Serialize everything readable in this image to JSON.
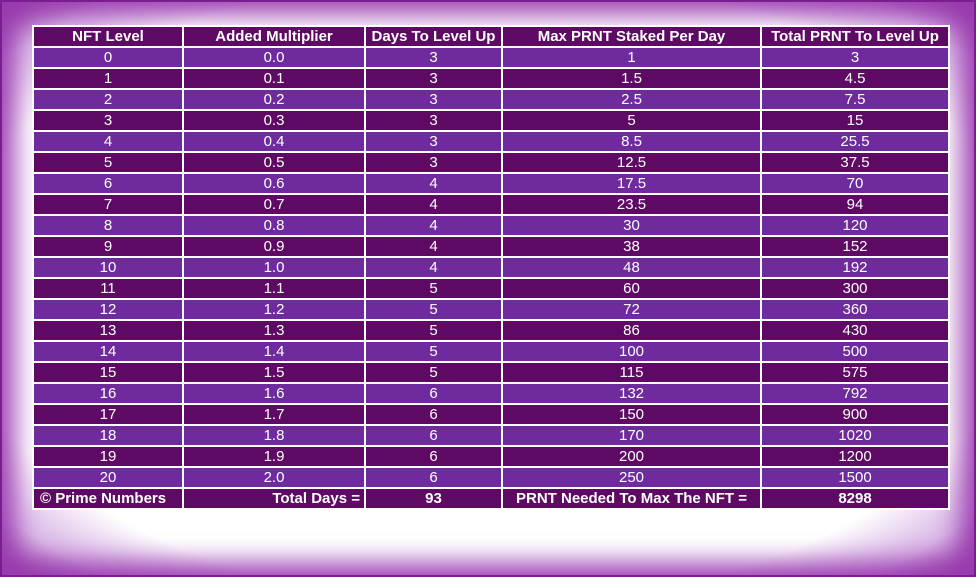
{
  "table": {
    "headers": [
      "NFT Level",
      "Added Multiplier",
      "Days To Level Up",
      "Max PRNT Staked Per Day",
      "Total PRNT To Level Up"
    ],
    "rows": [
      [
        "0",
        "0.0",
        "3",
        "1",
        "3"
      ],
      [
        "1",
        "0.1",
        "3",
        "1.5",
        "4.5"
      ],
      [
        "2",
        "0.2",
        "3",
        "2.5",
        "7.5"
      ],
      [
        "3",
        "0.3",
        "3",
        "5",
        "15"
      ],
      [
        "4",
        "0.4",
        "3",
        "8.5",
        "25.5"
      ],
      [
        "5",
        "0.5",
        "3",
        "12.5",
        "37.5"
      ],
      [
        "6",
        "0.6",
        "4",
        "17.5",
        "70"
      ],
      [
        "7",
        "0.7",
        "4",
        "23.5",
        "94"
      ],
      [
        "8",
        "0.8",
        "4",
        "30",
        "120"
      ],
      [
        "9",
        "0.9",
        "4",
        "38",
        "152"
      ],
      [
        "10",
        "1.0",
        "4",
        "48",
        "192"
      ],
      [
        "11",
        "1.1",
        "5",
        "60",
        "300"
      ],
      [
        "12",
        "1.2",
        "5",
        "72",
        "360"
      ],
      [
        "13",
        "1.3",
        "5",
        "86",
        "430"
      ],
      [
        "14",
        "1.4",
        "5",
        "100",
        "500"
      ],
      [
        "15",
        "1.5",
        "5",
        "115",
        "575"
      ],
      [
        "16",
        "1.6",
        "6",
        "132",
        "792"
      ],
      [
        "17",
        "1.7",
        "6",
        "150",
        "900"
      ],
      [
        "18",
        "1.8",
        "6",
        "170",
        "1020"
      ],
      [
        "19",
        "1.9",
        "6",
        "200",
        "1200"
      ],
      [
        "20",
        "2.0",
        "6",
        "250",
        "1500"
      ]
    ],
    "footer": {
      "copyright": "© Prime Numbers",
      "total_days_label": "Total Days =",
      "total_days_value": "93",
      "prnt_needed_label": "PRNT Needed To Max The NFT =",
      "prnt_needed_value": "8298"
    }
  },
  "colors": {
    "dark_purple": "#5e0a64",
    "light_purple": "#6f2a9e",
    "frame_glow": "#9a3ab0"
  }
}
